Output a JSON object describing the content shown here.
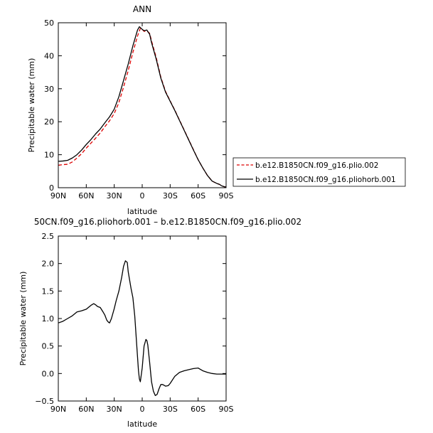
{
  "chart_data": [
    {
      "type": "line",
      "title": "ANN",
      "xlabel": "latitude",
      "ylabel": "Precipitable water (mm)",
      "xlim": [
        -90,
        90
      ],
      "ylim": [
        0,
        50
      ],
      "x_ticks": [
        -90,
        -60,
        -30,
        0,
        30,
        60,
        90
      ],
      "x_tick_labels": [
        "90N",
        "60N",
        "30N",
        "0",
        "30S",
        "60S",
        "90S"
      ],
      "y_ticks": [
        0,
        10,
        20,
        30,
        40,
        50
      ],
      "y_tick_labels": [
        "0",
        "10",
        "20",
        "30",
        "40",
        "50"
      ],
      "legend_position": "right",
      "series": [
        {
          "name": "b.e12.B1850CN.f09_g16.plio.002",
          "color": "#dd0000",
          "dash": "dashed",
          "x": [
            -90,
            -85,
            -80,
            -75,
            -70,
            -65,
            -60,
            -55,
            -50,
            -45,
            -40,
            -35,
            -30,
            -25,
            -20,
            -15,
            -10,
            -5,
            -2,
            0,
            2,
            5,
            8,
            10,
            15,
            20,
            25,
            30,
            35,
            40,
            45,
            50,
            55,
            60,
            65,
            70,
            75,
            80,
            83,
            85,
            88,
            90
          ],
          "y": [
            6.8,
            7.0,
            7.1,
            7.8,
            9.0,
            10.3,
            12.0,
            13.5,
            15.0,
            16.6,
            18.5,
            20.3,
            22.5,
            25.8,
            30.5,
            35.5,
            41.0,
            46.0,
            48.3,
            48.0,
            47.4,
            47.5,
            46.8,
            44.5,
            39.5,
            33.5,
            29.2,
            26.3,
            23.5,
            20.5,
            17.5,
            14.5,
            11.5,
            8.5,
            6.0,
            3.7,
            2.0,
            1.3,
            1.0,
            0.6,
            0.3,
            0.2
          ]
        },
        {
          "name": "b.e12.B1850CN.f09_g16.pliohorb.001",
          "color": "#000000",
          "dash": "solid",
          "x": [
            -90,
            -85,
            -80,
            -75,
            -70,
            -65,
            -60,
            -55,
            -50,
            -45,
            -40,
            -35,
            -30,
            -25,
            -20,
            -15,
            -10,
            -5,
            -3,
            0,
            2,
            5,
            8,
            10,
            15,
            20,
            25,
            30,
            35,
            40,
            45,
            50,
            55,
            60,
            65,
            70,
            75,
            80,
            83,
            85,
            88,
            90
          ],
          "y": [
            8.0,
            8.1,
            8.3,
            9.0,
            10.0,
            11.4,
            13.1,
            14.6,
            16.3,
            17.8,
            19.7,
            21.5,
            23.8,
            27.6,
            32.5,
            37.5,
            43.0,
            47.8,
            48.8,
            48.0,
            47.6,
            47.8,
            46.5,
            44.0,
            39.0,
            33.2,
            29.0,
            26.2,
            23.4,
            20.4,
            17.4,
            14.4,
            11.4,
            8.5,
            6.0,
            3.7,
            2.0,
            1.3,
            1.0,
            0.6,
            0.3,
            0.2
          ]
        }
      ]
    },
    {
      "type": "line",
      "title": "50CN.f09_g16.pliohorb.001 – b.e12.B1850CN.f09_g16.plio.002",
      "xlabel": "latitude",
      "ylabel": "Precipitable water (mm)",
      "xlim": [
        -90,
        90
      ],
      "ylim": [
        -0.5,
        2.5
      ],
      "x_ticks": [
        -90,
        -60,
        -30,
        0,
        30,
        60,
        90
      ],
      "x_tick_labels": [
        "90N",
        "60N",
        "30N",
        "0",
        "30S",
        "60S",
        "90S"
      ],
      "y_ticks": [
        -0.5,
        0.0,
        0.5,
        1.0,
        1.5,
        2.0,
        2.5
      ],
      "y_tick_labels": [
        "−0.5",
        "0.0",
        "0.5",
        "1.0",
        "1.5",
        "2.0",
        "2.5"
      ],
      "series": [
        {
          "color": "#000000",
          "x": [
            -90,
            -85,
            -80,
            -75,
            -70,
            -65,
            -60,
            -55,
            -52,
            -50,
            -48,
            -45,
            -42,
            -40,
            -38,
            -36,
            -35,
            -33,
            -30,
            -28,
            -25,
            -22,
            -20,
            -18,
            -16,
            -15,
            -12,
            -10,
            -8,
            -6,
            -5,
            -4,
            -3,
            -2,
            0,
            2,
            4,
            5,
            6,
            8,
            10,
            12,
            14,
            16,
            18,
            20,
            22,
            25,
            28,
            30,
            35,
            40,
            45,
            50,
            55,
            60,
            62,
            65,
            70,
            75,
            80,
            85,
            90
          ],
          "y": [
            0.92,
            0.95,
            1.0,
            1.05,
            1.12,
            1.14,
            1.17,
            1.24,
            1.27,
            1.25,
            1.22,
            1.2,
            1.12,
            1.06,
            0.97,
            0.93,
            0.92,
            1.0,
            1.18,
            1.32,
            1.5,
            1.75,
            1.95,
            2.05,
            2.02,
            1.85,
            1.55,
            1.38,
            1.05,
            0.55,
            0.3,
            0.05,
            -0.1,
            -0.15,
            0.1,
            0.5,
            0.62,
            0.6,
            0.52,
            0.2,
            -0.15,
            -0.32,
            -0.4,
            -0.38,
            -0.28,
            -0.2,
            -0.2,
            -0.23,
            -0.22,
            -0.18,
            -0.05,
            0.02,
            0.05,
            0.07,
            0.09,
            0.1,
            0.08,
            0.05,
            0.02,
            0.0,
            -0.01,
            -0.01,
            -0.01
          ]
        }
      ]
    }
  ]
}
